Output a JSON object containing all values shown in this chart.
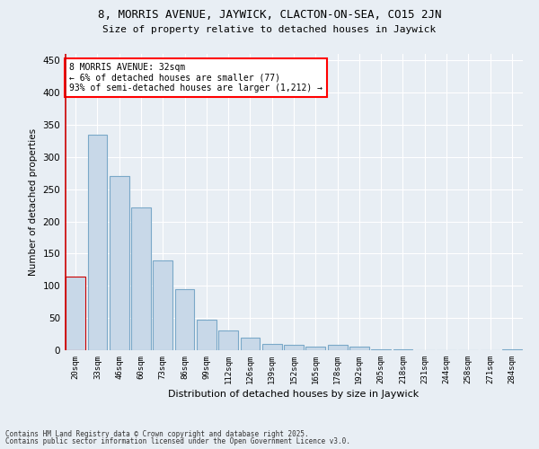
{
  "title_line1": "8, MORRIS AVENUE, JAYWICK, CLACTON-ON-SEA, CO15 2JN",
  "title_line2": "Size of property relative to detached houses in Jaywick",
  "xlabel": "Distribution of detached houses by size in Jaywick",
  "ylabel": "Number of detached properties",
  "bar_color": "#c8d8e8",
  "bar_edge_color": "#7aa8c8",
  "highlight_bar_edge_color": "#cc0000",
  "highlight_line_color": "#cc0000",
  "background_color": "#e8eef4",
  "grid_color": "#ffffff",
  "categories": [
    "20sqm",
    "33sqm",
    "46sqm",
    "60sqm",
    "73sqm",
    "86sqm",
    "99sqm",
    "112sqm",
    "126sqm",
    "139sqm",
    "152sqm",
    "165sqm",
    "178sqm",
    "192sqm",
    "205sqm",
    "218sqm",
    "231sqm",
    "244sqm",
    "258sqm",
    "271sqm",
    "284sqm"
  ],
  "values": [
    115,
    335,
    270,
    222,
    140,
    95,
    48,
    30,
    20,
    10,
    8,
    5,
    8,
    5,
    1,
    1,
    0,
    0,
    0,
    0,
    2
  ],
  "highlight_index": 0,
  "annotation_text": "8 MORRIS AVENUE: 32sqm\n← 6% of detached houses are smaller (77)\n93% of semi-detached houses are larger (1,212) →",
  "footnote_line1": "Contains HM Land Registry data © Crown copyright and database right 2025.",
  "footnote_line2": "Contains public sector information licensed under the Open Government Licence v3.0.",
  "ylim": [
    0,
    460
  ],
  "yticks": [
    0,
    50,
    100,
    150,
    200,
    250,
    300,
    350,
    400,
    450
  ]
}
